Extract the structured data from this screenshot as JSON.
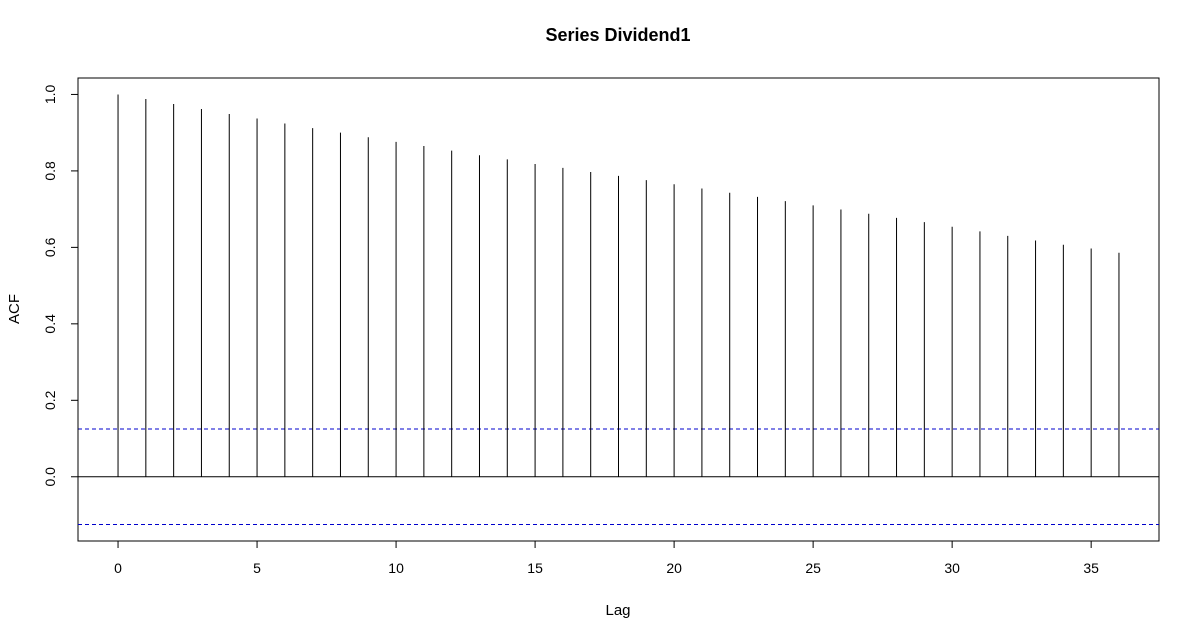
{
  "chart_data": {
    "type": "bar",
    "title": "Series  Dividend1",
    "xlabel": "Lag",
    "ylabel": "ACF",
    "x": [
      0,
      1,
      2,
      3,
      4,
      5,
      6,
      7,
      8,
      9,
      10,
      11,
      12,
      13,
      14,
      15,
      16,
      17,
      18,
      19,
      20,
      21,
      22,
      23,
      24,
      25,
      26,
      27,
      28,
      29,
      30,
      31,
      32,
      33,
      34,
      35,
      36
    ],
    "values": [
      1.0,
      0.988,
      0.975,
      0.962,
      0.949,
      0.937,
      0.924,
      0.912,
      0.9,
      0.888,
      0.876,
      0.865,
      0.853,
      0.841,
      0.83,
      0.818,
      0.808,
      0.797,
      0.787,
      0.776,
      0.765,
      0.754,
      0.743,
      0.732,
      0.721,
      0.71,
      0.699,
      0.688,
      0.677,
      0.666,
      0.654,
      0.642,
      0.63,
      0.618,
      0.607,
      0.597,
      0.586
    ],
    "xlim": [
      -1.44,
      37.44
    ],
    "ylim": [
      -0.168,
      1.043
    ],
    "x_ticks": [
      0,
      5,
      10,
      15,
      20,
      25,
      30,
      35
    ],
    "y_ticks": [
      0.0,
      0.2,
      0.4,
      0.6,
      0.8,
      1.0
    ],
    "x_tick_labels": [
      "0",
      "5",
      "10",
      "15",
      "20",
      "25",
      "30",
      "35"
    ],
    "y_tick_labels": [
      "0.0",
      "0.2",
      "0.4",
      "0.6",
      "0.8",
      "1.0"
    ],
    "confidence_bounds": [
      0.125,
      -0.125
    ],
    "zero_line": 0,
    "grid": false,
    "colors": {
      "bars": "#000000",
      "confidence": "#0000cc",
      "axes": "#000000"
    }
  }
}
